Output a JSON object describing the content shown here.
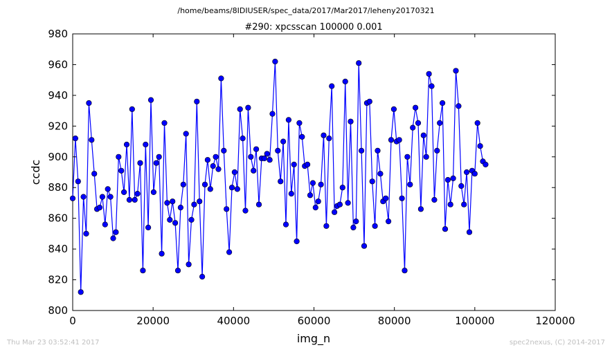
{
  "suptitle": "/home/beams/8IDIUSER/spec_data/2017/Mar2017/leheny20170321",
  "footer_left": "Thu Mar 23 03:52:41 2017",
  "footer_right": "spec2nexus, (C) 2014-2017",
  "chart_data": {
    "type": "line",
    "title": "#290: xpcsscan 100000 0.001",
    "xlabel": "img_n",
    "ylabel": "ccdc",
    "xlim": [
      0,
      120000
    ],
    "ylim": [
      800,
      980
    ],
    "xticks": [
      0,
      20000,
      40000,
      60000,
      80000,
      100000,
      120000
    ],
    "yticks": [
      800,
      820,
      840,
      860,
      880,
      900,
      920,
      940,
      960,
      980
    ],
    "grid": false,
    "marker": "circle",
    "line_color": "#0000ff",
    "marker_color": "#0000ff",
    "x_step": 671.14,
    "series": [
      {
        "values": [
          873,
          912,
          884,
          812,
          874,
          850,
          935,
          911,
          889,
          866,
          867,
          874,
          856,
          879,
          874,
          847,
          851,
          900,
          891,
          877,
          908,
          872,
          931,
          872,
          876,
          896,
          826,
          908,
          854,
          937,
          877,
          896,
          900,
          837,
          922,
          870,
          859,
          871,
          857,
          826,
          867,
          882,
          915,
          830,
          859,
          869,
          936,
          871,
          822,
          882,
          898,
          879,
          894,
          900,
          892,
          951,
          904,
          866,
          838,
          880,
          890,
          879,
          931,
          912,
          865,
          932,
          900,
          891,
          905,
          869,
          899,
          899,
          902,
          898,
          928,
          962,
          904,
          884,
          910,
          856,
          924,
          876,
          895,
          845,
          922,
          913,
          894,
          895,
          875,
          883,
          867,
          871,
          882,
          914,
          855,
          912,
          946,
          864,
          868,
          869,
          880,
          949,
          870,
          923,
          854,
          858,
          961,
          904,
          842,
          935,
          936,
          884,
          855,
          904,
          889,
          871,
          873,
          858,
          911,
          931,
          910,
          911,
          873,
          826,
          900,
          882,
          919,
          932,
          922,
          866,
          914,
          900,
          954,
          946,
          872,
          904,
          922,
          935,
          853,
          885,
          869,
          886,
          956,
          933,
          881,
          869,
          890,
          851,
          891,
          889,
          922,
          907,
          897,
          895
        ]
      }
    ]
  }
}
